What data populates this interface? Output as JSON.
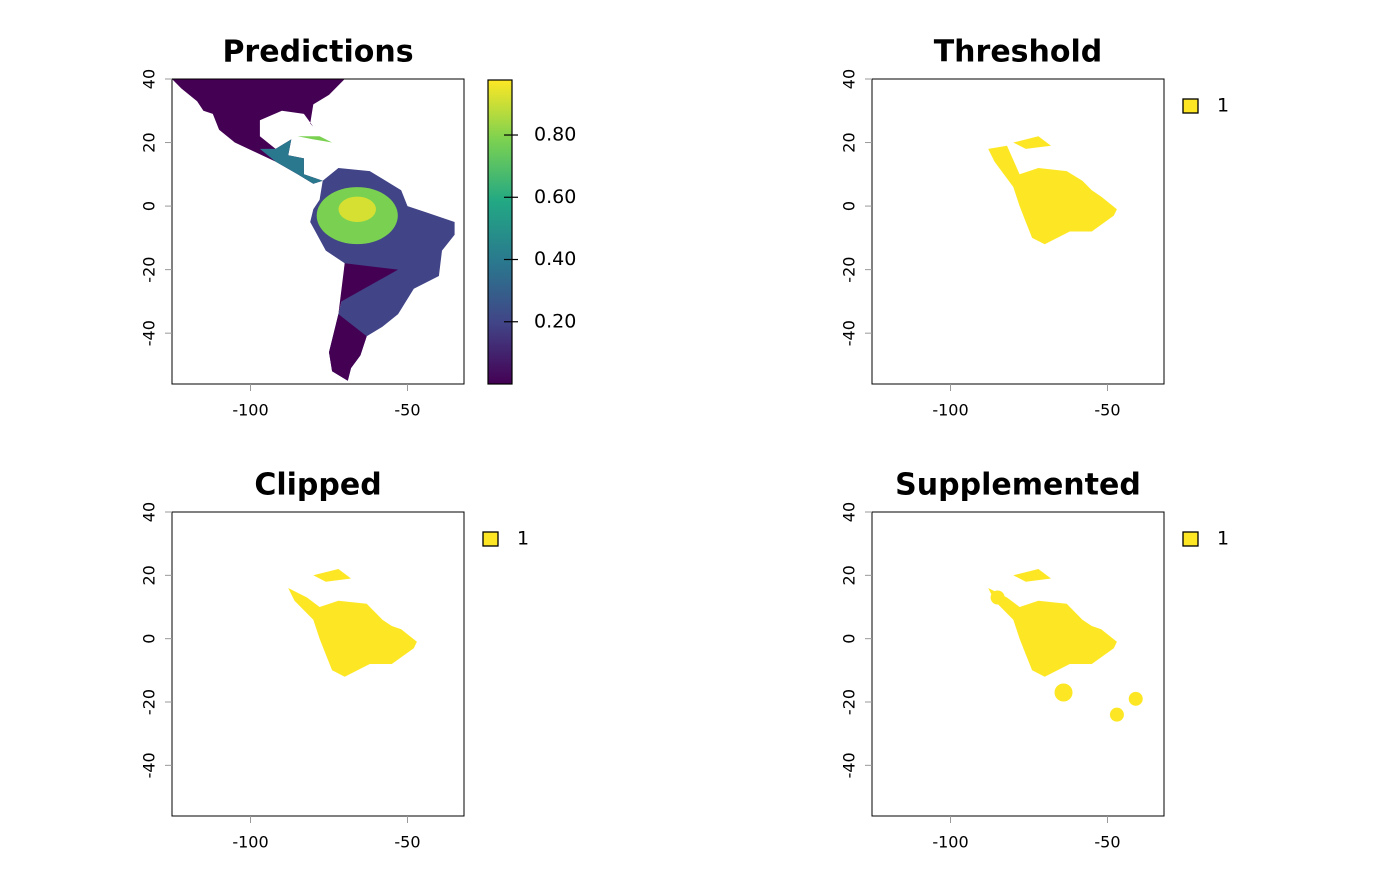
{
  "chart_data": [
    {
      "type": "raster",
      "title": "Predictions",
      "xlim": [
        -125,
        -32
      ],
      "ylim": [
        -56,
        40
      ],
      "xticks": [
        -100,
        -50
      ],
      "yticks": [
        -40,
        -20,
        0,
        20,
        40
      ],
      "zlim": [
        0,
        0.98
      ],
      "zticks": [
        {
          "value": 0.2,
          "label": "0.20"
        },
        {
          "value": 0.4,
          "label": "0.40"
        },
        {
          "value": 0.6,
          "label": "0.60"
        },
        {
          "value": 0.8,
          "label": "0.80"
        }
      ],
      "colors": [
        "#440154",
        "#414487",
        "#2a788e",
        "#22a884",
        "#7ad151",
        "#fde725"
      ]
    },
    {
      "type": "classes",
      "title": "Threshold",
      "xlim": [
        -125,
        -32
      ],
      "ylim": [
        -56,
        40
      ],
      "xticks": [
        -100,
        -50
      ],
      "yticks": [
        -40,
        -20,
        0,
        20,
        40
      ],
      "classes": [
        "1"
      ],
      "color": "#fde725"
    },
    {
      "type": "classes",
      "title": "Clipped",
      "xlim": [
        -125,
        -32
      ],
      "ylim": [
        -56,
        40
      ],
      "xticks": [
        -100,
        -50
      ],
      "yticks": [
        -40,
        -20,
        0,
        20,
        40
      ],
      "classes": [
        "1"
      ],
      "color": "#fde725"
    },
    {
      "type": "classes",
      "title": "Supplemented",
      "xlim": [
        -125,
        -32
      ],
      "ylim": [
        -56,
        40
      ],
      "xticks": [
        -100,
        -50
      ],
      "yticks": [
        -40,
        -20,
        0,
        20,
        40
      ],
      "classes": [
        "1"
      ],
      "color": "#fde725"
    }
  ]
}
